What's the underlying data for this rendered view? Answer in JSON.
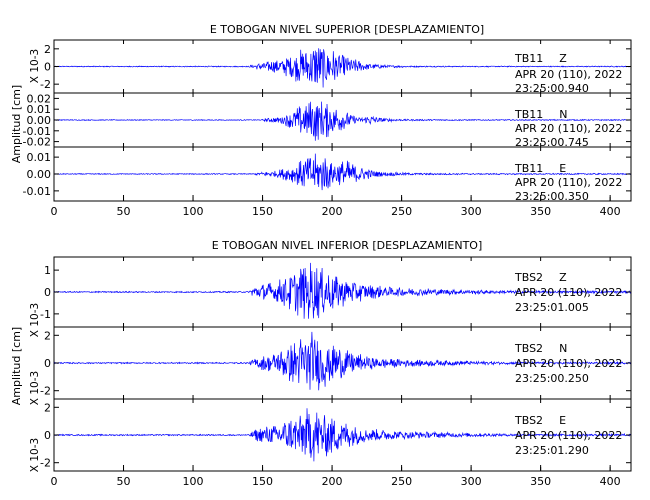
{
  "chart_data": [
    {
      "type": "line",
      "title": "E TOBOGAN NIVEL SUPERIOR [DESPLAZAMIENTO]",
      "ylabel": "Amplitud [cm]",
      "xlim": [
        0,
        415
      ],
      "x_ticks": [
        "0",
        "50",
        "100",
        "150",
        "200",
        "250",
        "300",
        "350",
        "400"
      ],
      "line_color": "#0000ff",
      "panels": [
        {
          "scale_label": "X 10-3",
          "ylim": [
            -3,
            3
          ],
          "y_ticks": [
            "2",
            "0",
            "-2"
          ],
          "y_tick_values": [
            2,
            0,
            -2
          ],
          "station": "TB11",
          "component": "Z",
          "date": "APR 20 (110), 2022",
          "time": "23:25:00.940",
          "noise": 0.06,
          "envelope": [
            [
              140,
              0.1
            ],
            [
              150,
              0.5
            ],
            [
              165,
              1.0
            ],
            [
              180,
              2.2
            ],
            [
              188,
              2.9
            ],
            [
              198,
              2.4
            ],
            [
              210,
              1.2
            ],
            [
              225,
              0.4
            ],
            [
              240,
              0.15
            ],
            [
              260,
              0.08
            ],
            [
              300,
              0.06
            ]
          ]
        },
        {
          "scale_label": "",
          "ylim": [
            -0.025,
            0.025
          ],
          "y_ticks": [
            "0.02",
            "0.01",
            "0.00",
            "-0.01",
            "-0.02"
          ],
          "y_tick_values": [
            0.02,
            0.01,
            0,
            -0.01,
            -0.02
          ],
          "station": "TB11",
          "component": "N",
          "date": "APR 20 (110), 2022",
          "time": "23:25:00.745",
          "noise": 0.0004,
          "envelope": [
            [
              150,
              0.001
            ],
            [
              165,
              0.004
            ],
            [
              178,
              0.015
            ],
            [
              188,
              0.021
            ],
            [
              200,
              0.016
            ],
            [
              212,
              0.007
            ],
            [
              220,
              0.002
            ],
            [
              228,
              0.005
            ],
            [
              236,
              0.002
            ],
            [
              250,
              0.0008
            ],
            [
              300,
              0.0005
            ]
          ]
        },
        {
          "scale_label": "",
          "ylim": [
            -0.016,
            0.016
          ],
          "y_ticks": [
            "0.01",
            "0.00",
            "-0.01"
          ],
          "y_tick_values": [
            0.01,
            0,
            -0.01
          ],
          "station": "TB11",
          "component": "E",
          "date": "APR 20 (110), 2022",
          "time": "23:25:00.350",
          "noise": 0.0003,
          "envelope": [
            [
              145,
              0.0008
            ],
            [
              160,
              0.002
            ],
            [
              175,
              0.007
            ],
            [
              186,
              0.012
            ],
            [
              194,
              0.013
            ],
            [
              200,
              0.007
            ],
            [
              210,
              0.009
            ],
            [
              222,
              0.004
            ],
            [
              235,
              0.0015
            ],
            [
              260,
              0.0006
            ],
            [
              300,
              0.0004
            ]
          ]
        }
      ]
    },
    {
      "type": "line",
      "title": "E TOBOGAN NIVEL INFERIOR [DESPLAZAMIENTO]",
      "ylabel": "Amplitud [cm]",
      "xlim": [
        0,
        415
      ],
      "x_ticks": [
        "0",
        "50",
        "100",
        "150",
        "200",
        "250",
        "300",
        "350",
        "400"
      ],
      "line_color": "#0000ff",
      "panels": [
        {
          "scale_label": "X 10-3",
          "ylim": [
            -1.6,
            1.6
          ],
          "y_ticks": [
            "1",
            "0",
            "-1"
          ],
          "y_tick_values": [
            1,
            0,
            -1
          ],
          "station": "TBS2",
          "component": "Z",
          "date": "APR 20 (110), 2022",
          "time": "23:25:01.005",
          "noise": 0.03,
          "envelope": [
            [
              140,
              0.04
            ],
            [
              145,
              0.35
            ],
            [
              160,
              0.5
            ],
            [
              175,
              1.2
            ],
            [
              185,
              1.45
            ],
            [
              195,
              1.2
            ],
            [
              210,
              0.65
            ],
            [
              225,
              0.35
            ],
            [
              250,
              0.2
            ],
            [
              300,
              0.1
            ],
            [
              340,
              0.06
            ]
          ]
        },
        {
          "scale_label": "X 10-3",
          "ylim": [
            -2.6,
            2.6
          ],
          "y_ticks": [
            "2",
            "0",
            "-2"
          ],
          "y_tick_values": [
            2,
            0,
            -2
          ],
          "station": "TBS2",
          "component": "N",
          "date": "APR 20 (110), 2022",
          "time": "23:25:00.250",
          "noise": 0.05,
          "envelope": [
            [
              140,
              0.06
            ],
            [
              145,
              0.4
            ],
            [
              160,
              0.8
            ],
            [
              175,
              1.8
            ],
            [
              185,
              2.4
            ],
            [
              195,
              1.8
            ],
            [
              210,
              1.0
            ],
            [
              225,
              0.5
            ],
            [
              250,
              0.3
            ],
            [
              300,
              0.15
            ],
            [
              340,
              0.08
            ]
          ]
        },
        {
          "scale_label": "X 10-3",
          "ylim": [
            -2.6,
            2.6
          ],
          "y_ticks": [
            "2",
            "0",
            "-2"
          ],
          "y_tick_values": [
            2,
            0,
            -2
          ],
          "station": "TBS2",
          "component": "E",
          "date": "APR 20 (110), 2022",
          "time": "23:25:01.290",
          "noise": 0.05,
          "envelope": [
            [
              140,
              0.06
            ],
            [
              145,
              0.5
            ],
            [
              160,
              0.8
            ],
            [
              175,
              1.6
            ],
            [
              185,
              2.2
            ],
            [
              195,
              1.7
            ],
            [
              210,
              1.0
            ],
            [
              225,
              0.5
            ],
            [
              250,
              0.3
            ],
            [
              300,
              0.15
            ],
            [
              340,
              0.08
            ]
          ]
        }
      ]
    }
  ]
}
